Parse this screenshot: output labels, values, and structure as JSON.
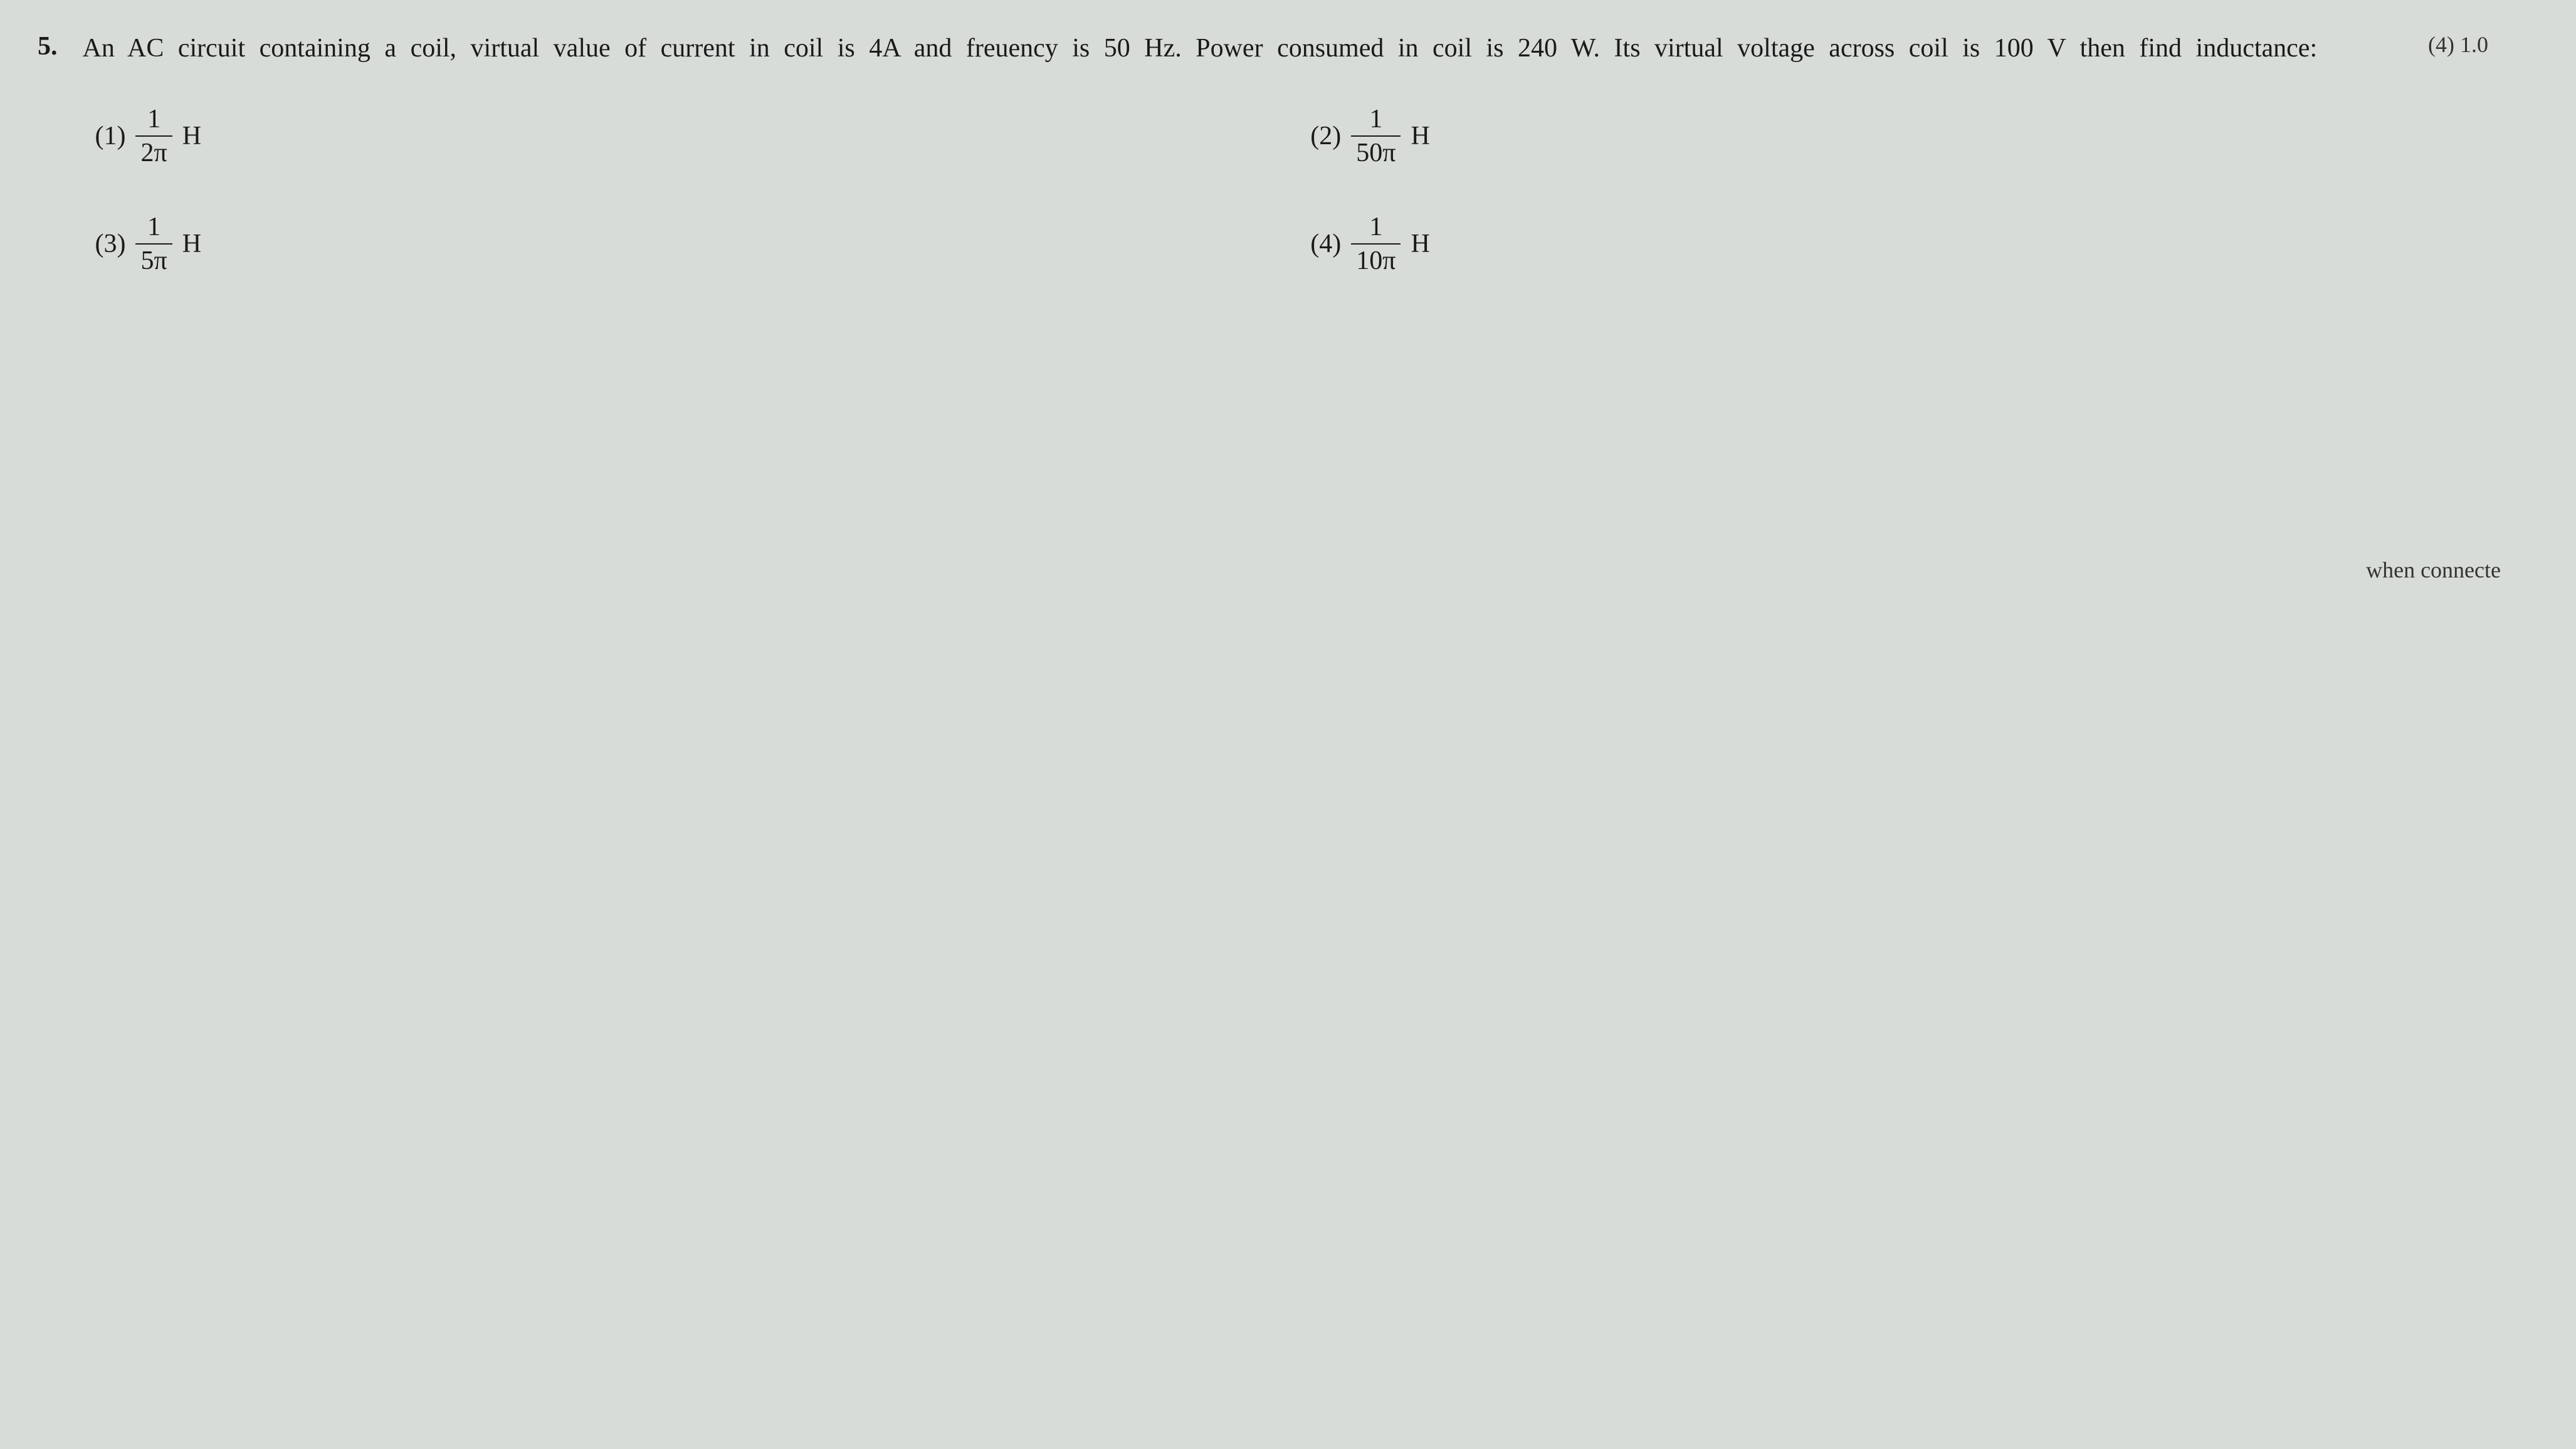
{
  "page": {
    "background_color": "#d8dcd8",
    "text_color": "#1a1a1a",
    "font_family": "Georgia, Times New Roman, serif",
    "question_fontsize": 42,
    "option_fontsize": 42
  },
  "top_fragment": "(4) 1.0",
  "bottom_fragment": "when connecte",
  "question": {
    "number": "5.",
    "text": "An AC circuit containing a coil, virtual value of current in coil is 4A and freuency is 50 Hz. Power consumed in coil is 240 W. Its virtual voltage across coil is 100 V then find inductance:"
  },
  "options": {
    "1": {
      "label": "(1)",
      "numerator": "1",
      "denominator": "2π",
      "unit": "H"
    },
    "2": {
      "label": "(2)",
      "numerator": "1",
      "denominator": "50π",
      "unit": "H"
    },
    "3": {
      "label": "(3)",
      "numerator": "1",
      "denominator": "5π",
      "unit": "H"
    },
    "4": {
      "label": "(4)",
      "numerator": "1",
      "denominator": "10π",
      "unit": "H"
    }
  }
}
